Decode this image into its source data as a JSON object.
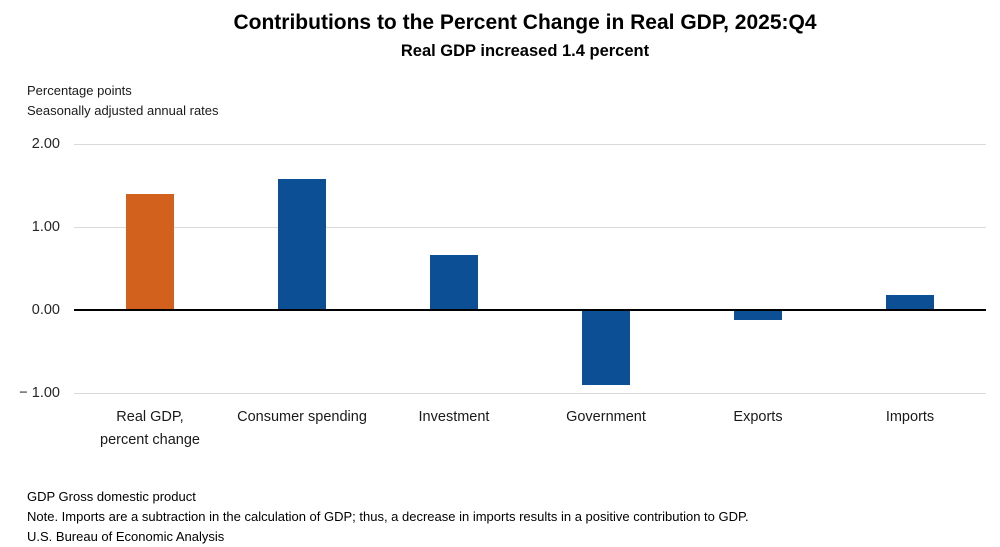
{
  "header": {
    "title": "Contributions to the Percent Change in Real GDP, 2025:Q4",
    "subtitle": "Real GDP increased 1.4 percent"
  },
  "units_label": {
    "line1": "Percentage points",
    "line2": "Seasonally adjusted annual rates"
  },
  "chart_data": {
    "type": "bar",
    "title": "Contributions to the Percent Change in Real GDP, 2025:Q4",
    "subtitle": "Real GDP increased 1.4 percent",
    "ylabel": "Percentage points, seasonally adjusted annual rates",
    "categories": [
      "Real GDP,\npercent change",
      "Consumer spending",
      "Investment",
      "Government",
      "Exports",
      "Imports"
    ],
    "values": [
      1.4,
      1.58,
      0.66,
      -0.89,
      -0.11,
      0.18
    ],
    "bar_colors": [
      "#d2611d",
      "#0d4f94",
      "#0d4f94",
      "#0d4f94",
      "#0d4f94",
      "#0d4f94"
    ],
    "ylim": [
      -1.0,
      2.0
    ],
    "yticks": [
      {
        "value": 2.0,
        "label": "2.00"
      },
      {
        "value": 1.0,
        "label": "1.00"
      },
      {
        "value": 0.0,
        "label": "0.00"
      },
      {
        "value": -1.0,
        "label": "− 1.00"
      }
    ],
    "grid": true,
    "legend": false,
    "gridline_color": "#d9d9d9",
    "zero_line_color": "#000000"
  },
  "footnotes": {
    "lines": [
      "GDP Gross domestic product",
      "Note. Imports are a subtraction in the calculation of GDP; thus, a decrease in imports results in a positive contribution to GDP.",
      "U.S. Bureau of Economic Analysis"
    ]
  }
}
